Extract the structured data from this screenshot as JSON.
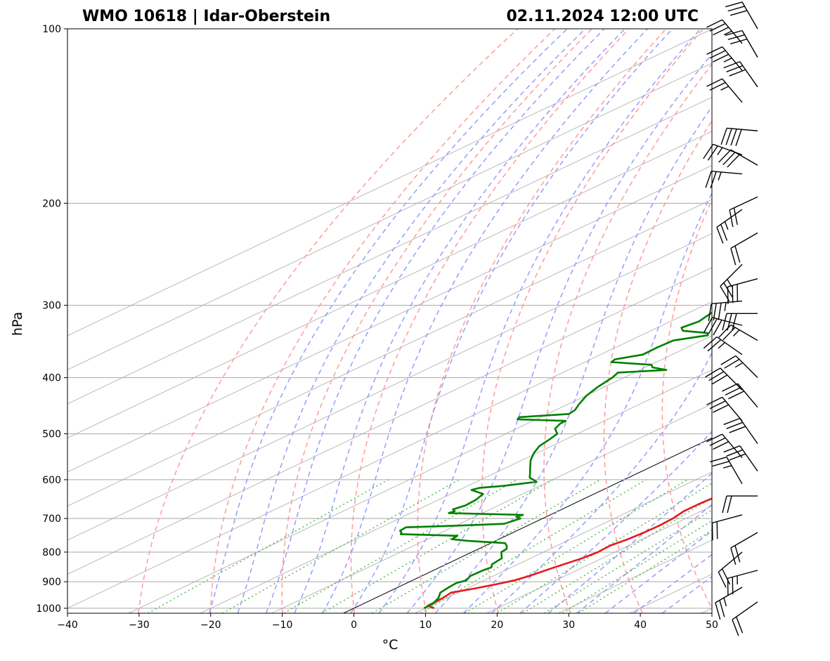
{
  "chart_data": {
    "type": "line",
    "subtype": "skew-t log-p sounding",
    "title_left": "WMO 10618 | Idar-Oberstein",
    "title_right": "02.11.2024 12:00 UTC",
    "xlabel": "°C",
    "ylabel": "hPa",
    "xlim": [
      -40,
      50
    ],
    "ylim": [
      1020,
      100
    ],
    "x_ticks": [
      -40,
      -30,
      -20,
      -10,
      0,
      10,
      20,
      30,
      40,
      50
    ],
    "y_ticks": [
      100,
      200,
      300,
      400,
      500,
      600,
      700,
      800,
      900,
      1000
    ],
    "grid": true,
    "colors": {
      "temperature": "#e31a1c",
      "dewpoint": "#008000",
      "dry_adiabat": "#ff9a9a",
      "moist_adiabat": "#9a9aff",
      "mixing_ratio": "#55bb55",
      "isotherm": "#a8a8a8",
      "zero_isotherm": "#000000",
      "wind_barb": "#000000"
    },
    "series": [
      {
        "name": "Temperature",
        "points": [
          [
            1000,
            11.2
          ],
          [
            990,
            9.6
          ],
          [
            960,
            9.4
          ],
          [
            940,
            9.0
          ],
          [
            925,
            11.0
          ],
          [
            905,
            13.3
          ],
          [
            895,
            14.2
          ],
          [
            880,
            15.0
          ],
          [
            850,
            16.0
          ],
          [
            820,
            17.2
          ],
          [
            800,
            17.6
          ],
          [
            780,
            17.4
          ],
          [
            760,
            18.0
          ],
          [
            740,
            18.3
          ],
          [
            720,
            18.4
          ],
          [
            700,
            18.2
          ],
          [
            680,
            17.6
          ],
          [
            660,
            17.6
          ],
          [
            640,
            17.9
          ],
          [
            620,
            17.7
          ],
          [
            600,
            17.2
          ],
          [
            580,
            16.3
          ],
          [
            560,
            15.4
          ],
          [
            540,
            14.4
          ],
          [
            520,
            13.8
          ],
          [
            500,
            12.8
          ],
          [
            480,
            11.8
          ],
          [
            460,
            10.6
          ],
          [
            450,
            9.9
          ],
          [
            440,
            9.3
          ],
          [
            430,
            9.4
          ],
          [
            420,
            8.5
          ],
          [
            400,
            7.2
          ],
          [
            380,
            5.7
          ],
          [
            360,
            4.3
          ],
          [
            340,
            3.3
          ],
          [
            320,
            2.1
          ],
          [
            300,
            1.0
          ],
          [
            280,
            -0.4
          ],
          [
            260,
            -1.3
          ],
          [
            250,
            -1.9
          ],
          [
            240,
            -2.3
          ],
          [
            230,
            -2.2
          ],
          [
            220,
            -2.7
          ],
          [
            210,
            -3.7
          ],
          [
            200,
            -4.7
          ],
          [
            190,
            -5.6
          ],
          [
            185,
            -6.5
          ],
          [
            182,
            -5.3
          ],
          [
            175,
            -5.4
          ],
          [
            165,
            -5.2
          ],
          [
            155,
            -6.1
          ],
          [
            148,
            -5.4
          ],
          [
            146,
            -3.5
          ],
          [
            143,
            -3.5
          ],
          [
            140,
            -1.9
          ],
          [
            137,
            0.5
          ],
          [
            134,
            0.5
          ],
          [
            130,
            2.7
          ],
          [
            125,
            3.8
          ],
          [
            122,
            3.9
          ],
          [
            118,
            5.0
          ],
          [
            115,
            5.1
          ],
          [
            112,
            6.8
          ],
          [
            110,
            8.3
          ],
          [
            108,
            8.8
          ],
          [
            106,
            10.5
          ],
          [
            104,
            10.8
          ],
          [
            102,
            12.1
          ],
          [
            100,
            12.7
          ]
        ]
      },
      {
        "name": "Dewpoint",
        "points": [
          [
            1000,
            9.8
          ],
          [
            980,
            9.6
          ],
          [
            960,
            8.8
          ],
          [
            940,
            7.5
          ],
          [
            920,
            7.1
          ],
          [
            905,
            6.9
          ],
          [
            895,
            7.5
          ],
          [
            880,
            6.8
          ],
          [
            860,
            6.9
          ],
          [
            850,
            7.2
          ],
          [
            840,
            6.4
          ],
          [
            820,
            6.0
          ],
          [
            800,
            4.1
          ],
          [
            790,
            3.9
          ],
          [
            780,
            3.0
          ],
          [
            772,
            2.0
          ],
          [
            765,
            -3.9
          ],
          [
            760,
            -6.6
          ],
          [
            750,
            -6.8
          ],
          [
            745,
            -15.2
          ],
          [
            740,
            -15.6
          ],
          [
            735,
            -16.3
          ],
          [
            725,
            -16.5
          ],
          [
            720,
            -9.5
          ],
          [
            715,
            -3.8
          ],
          [
            700,
            -3.1
          ],
          [
            695,
            -4.2
          ],
          [
            690,
            -3.8
          ],
          [
            685,
            -14.7
          ],
          [
            680,
            -14.4
          ],
          [
            675,
            -15.2
          ],
          [
            665,
            -14.6
          ],
          [
            650,
            -14.8
          ],
          [
            635,
            -15.5
          ],
          [
            625,
            -18.3
          ],
          [
            620,
            -17.8
          ],
          [
            615,
            -15.0
          ],
          [
            605,
            -11.6
          ],
          [
            595,
            -13.8
          ],
          [
            585,
            -15.0
          ],
          [
            570,
            -16.9
          ],
          [
            555,
            -18.8
          ],
          [
            540,
            -20.4
          ],
          [
            525,
            -21.7
          ],
          [
            510,
            -22.3
          ],
          [
            500,
            -22.8
          ],
          [
            490,
            -24.6
          ],
          [
            480,
            -25.4
          ],
          [
            475,
            -25.4
          ],
          [
            472,
            -32.6
          ],
          [
            468,
            -33.0
          ],
          [
            462,
            -27.0
          ],
          [
            455,
            -27.3
          ],
          [
            445,
            -28.4
          ],
          [
            430,
            -29.9
          ],
          [
            415,
            -30.9
          ],
          [
            400,
            -31.6
          ],
          [
            392,
            -32.3
          ],
          [
            388,
            -26.3
          ],
          [
            384,
            -29.0
          ],
          [
            380,
            -29.9
          ],
          [
            376,
            -36.3
          ],
          [
            372,
            -36.6
          ],
          [
            365,
            -34.1
          ],
          [
            355,
            -34.2
          ],
          [
            345,
            -34.0
          ],
          [
            338,
            -30.7
          ],
          [
            335,
            -31.4
          ],
          [
            332,
            -35.5
          ],
          [
            328,
            -36.6
          ],
          [
            320,
            -36.0
          ],
          [
            310,
            -36.7
          ],
          [
            300,
            -37.5
          ],
          [
            290,
            -39.5
          ],
          [
            280,
            -41.0
          ],
          [
            270,
            -43.2
          ],
          [
            260,
            -45.4
          ],
          [
            255,
            -46.1
          ],
          [
            250,
            -46.5
          ],
          [
            245,
            -47.4
          ],
          [
            240,
            -53.6
          ],
          [
            237,
            -53.4
          ],
          [
            234,
            -45.6
          ],
          [
            228,
            -44.3
          ],
          [
            222,
            -45.5
          ],
          [
            215,
            -45.9
          ],
          [
            205,
            -47.8
          ],
          [
            198,
            -48.6
          ],
          [
            192,
            -49.7
          ],
          [
            186,
            -49.6
          ],
          [
            183,
            -50.7
          ],
          [
            181,
            -54.1
          ],
          [
            178,
            -54.6
          ],
          [
            172,
            -53.8
          ],
          [
            165,
            -54.6
          ],
          [
            158,
            -55.0
          ],
          [
            154,
            -56.1
          ],
          [
            150,
            -58.7
          ],
          [
            146,
            -60.2
          ],
          [
            144,
            -61.2
          ],
          [
            141,
            -62.7
          ],
          [
            138,
            -64.4
          ],
          [
            135,
            -65.6
          ],
          [
            130,
            -66.8
          ],
          [
            126,
            -67.5
          ],
          [
            122,
            -68.3
          ],
          [
            118,
            -69.1
          ],
          [
            115,
            -70.3
          ],
          [
            112,
            -71.3
          ],
          [
            110,
            -71.8
          ],
          [
            108,
            -72.2
          ],
          [
            105,
            -73.2
          ],
          [
            103,
            -73.9
          ],
          [
            100,
            -74.7
          ]
        ]
      }
    ],
    "wind_barbs": [
      {
        "p": 100,
        "dir": 330,
        "kt": 30
      },
      {
        "p": 106,
        "dir": 320,
        "kt": 35
      },
      {
        "p": 112,
        "dir": 330,
        "kt": 30
      },
      {
        "p": 118,
        "dir": 320,
        "kt": 35
      },
      {
        "p": 126,
        "dir": 325,
        "kt": 30
      },
      {
        "p": 134,
        "dir": 320,
        "kt": 25
      },
      {
        "p": 150,
        "dir": 275,
        "kt": 40
      },
      {
        "p": 165,
        "dir": 290,
        "kt": 25
      },
      {
        "p": 172,
        "dir": 300,
        "kt": 30
      },
      {
        "p": 178,
        "dir": 275,
        "kt": 25
      },
      {
        "p": 195,
        "dir": 245,
        "kt": 20
      },
      {
        "p": 205,
        "dir": 235,
        "kt": 25
      },
      {
        "p": 225,
        "dir": 240,
        "kt": 20
      },
      {
        "p": 255,
        "dir": 225,
        "kt": 25
      },
      {
        "p": 270,
        "dir": 255,
        "kt": 30
      },
      {
        "p": 295,
        "dir": 265,
        "kt": 35
      },
      {
        "p": 310,
        "dir": 270,
        "kt": 30
      },
      {
        "p": 325,
        "dir": 285,
        "kt": 30
      },
      {
        "p": 345,
        "dir": 300,
        "kt": 25
      },
      {
        "p": 365,
        "dir": 305,
        "kt": 25
      },
      {
        "p": 400,
        "dir": 315,
        "kt": 25
      },
      {
        "p": 420,
        "dir": 315,
        "kt": 30
      },
      {
        "p": 450,
        "dir": 320,
        "kt": 30
      },
      {
        "p": 475,
        "dir": 320,
        "kt": 30
      },
      {
        "p": 520,
        "dir": 325,
        "kt": 30
      },
      {
        "p": 550,
        "dir": 320,
        "kt": 30
      },
      {
        "p": 580,
        "dir": 325,
        "kt": 30
      },
      {
        "p": 610,
        "dir": 330,
        "kt": 25
      },
      {
        "p": 640,
        "dir": 270,
        "kt": 20
      },
      {
        "p": 690,
        "dir": 255,
        "kt": 20
      },
      {
        "p": 740,
        "dir": 240,
        "kt": 20
      },
      {
        "p": 800,
        "dir": 230,
        "kt": 20
      },
      {
        "p": 860,
        "dir": 255,
        "kt": 25
      },
      {
        "p": 920,
        "dir": 240,
        "kt": 25
      },
      {
        "p": 975,
        "dir": 235,
        "kt": 20
      }
    ]
  }
}
